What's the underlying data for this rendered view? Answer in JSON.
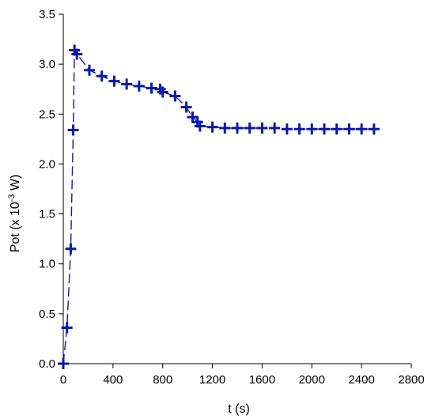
{
  "chart_data": {
    "type": "line",
    "title": "",
    "xlabel": "t (s)",
    "ylabel_main": "Pot (x 10",
    "ylabel_sup": "-3",
    "ylabel_end": " W)",
    "xlim": [
      0,
      2800
    ],
    "ylim": [
      0,
      3.5
    ],
    "xticks": [
      0,
      400,
      800,
      1200,
      1600,
      2000,
      2400,
      2800
    ],
    "yticks": [
      "0.0",
      "0.5",
      "1.0",
      "1.5",
      "2.0",
      "2.5",
      "3.0",
      "3.5"
    ],
    "grid": false,
    "line_style": "dashed",
    "marker": "plus",
    "series_color": "#0a1aa8",
    "series": [
      {
        "x": [
          0,
          30,
          60,
          80,
          90,
          110,
          210,
          310,
          410,
          510,
          610,
          710,
          780,
          800,
          900,
          990,
          1040,
          1080,
          1100,
          1200,
          1300,
          1400,
          1500,
          1600,
          1700,
          1800,
          1900,
          2000,
          2100,
          2200,
          2300,
          2400,
          2500
        ],
        "y": [
          0.0,
          0.36,
          1.15,
          2.34,
          3.14,
          3.1,
          2.94,
          2.88,
          2.83,
          2.8,
          2.78,
          2.76,
          2.75,
          2.72,
          2.68,
          2.57,
          2.47,
          2.42,
          2.38,
          2.37,
          2.36,
          2.36,
          2.36,
          2.36,
          2.36,
          2.35,
          2.35,
          2.35,
          2.35,
          2.35,
          2.35,
          2.35,
          2.35
        ]
      }
    ]
  }
}
